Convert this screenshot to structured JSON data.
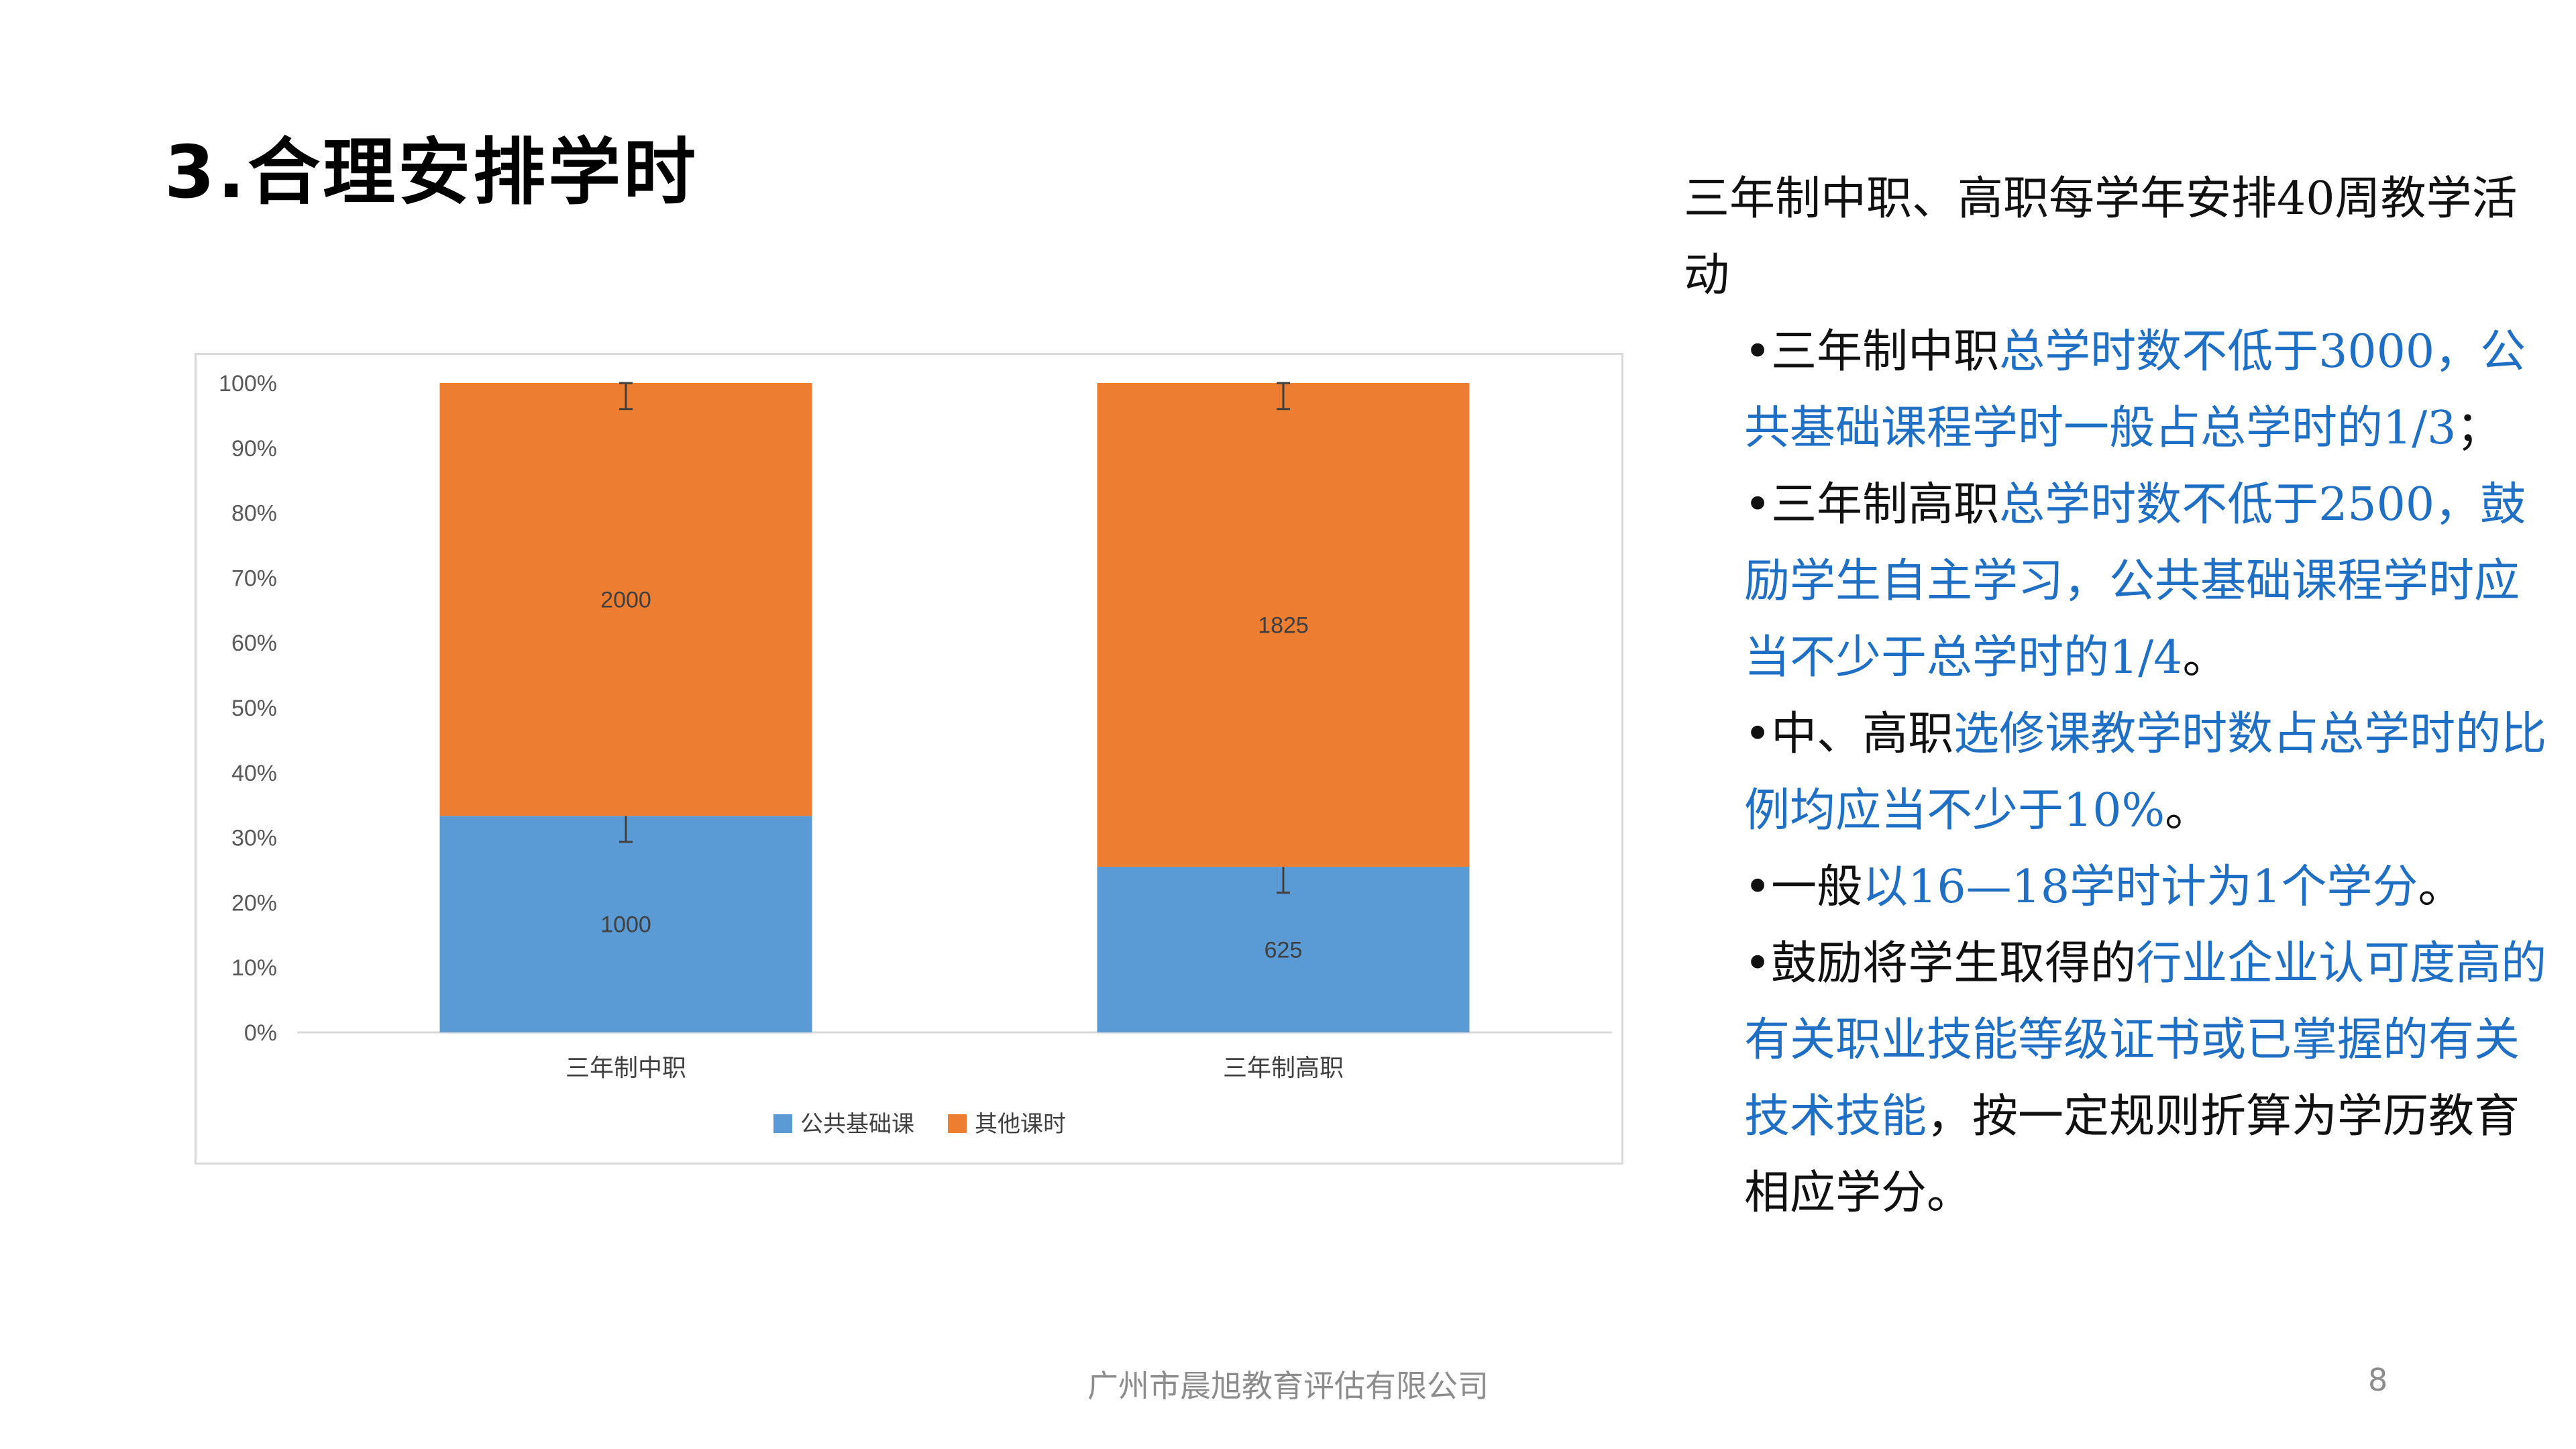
{
  "slide": {
    "title": "3.合理安排学时",
    "footer": "广州市晨旭教育评估有限公司",
    "page_number": "8"
  },
  "side_text": {
    "lead": "三年制中职、高职每学年安排40周教学活动",
    "bullets": [
      [
        {
          "t": "•三年制中职",
          "c": "black"
        },
        {
          "t": "总学时数不低于3000，公共基础课程学时一般占总学时的1/3",
          "c": "blue"
        },
        {
          "t": "；",
          "c": "black"
        }
      ],
      [
        {
          "t": "•三年制高职",
          "c": "black"
        },
        {
          "t": "总学时数不低于2500，鼓励学生自主学习，公共基础课程学时应当不少于总学时的1/4",
          "c": "blue"
        },
        {
          "t": "。",
          "c": "black"
        }
      ],
      [
        {
          "t": "•中、高职",
          "c": "black"
        },
        {
          "t": "选修课教学时数占总学时的比例均应当不少于10%",
          "c": "blue"
        },
        {
          "t": "。",
          "c": "black"
        }
      ],
      [
        {
          "t": "•一般",
          "c": "black"
        },
        {
          "t": "以16—18学时计为1个学分",
          "c": "blue"
        },
        {
          "t": "。",
          "c": "black"
        }
      ],
      [
        {
          "t": "•鼓励将学生取得的",
          "c": "black"
        },
        {
          "t": "行业企业认可度高的有关职业技能等级证书或已掌握的有关技术技能",
          "c": "blue"
        },
        {
          "t": "，按一定规则折算为学历教育相应学分。",
          "c": "black"
        }
      ]
    ]
  },
  "colors": {
    "blue_text": "#1f6fc5",
    "series_public": "#5b9bd5",
    "series_other": "#ed7d31"
  },
  "chart_data": {
    "type": "bar",
    "stacked": "percent",
    "categories": [
      "三年制中职",
      "三年制高职"
    ],
    "series": [
      {
        "name": "公共基础课",
        "values": [
          1000,
          625
        ],
        "color": "#5b9bd5"
      },
      {
        "name": "其他课时",
        "values": [
          2000,
          1825
        ],
        "color": "#ed7d31"
      }
    ],
    "data_labels": {
      "公共基础课": [
        "1000",
        "625"
      ],
      "其他课时": [
        "2000",
        "1825"
      ]
    },
    "y_ticks": [
      "0%",
      "10%",
      "20%",
      "30%",
      "40%",
      "50%",
      "60%",
      "70%",
      "80%",
      "90%",
      "100%"
    ],
    "ylim": [
      0,
      100
    ],
    "error_bar_percent": 4,
    "legend": "bottom",
    "grid": false
  }
}
